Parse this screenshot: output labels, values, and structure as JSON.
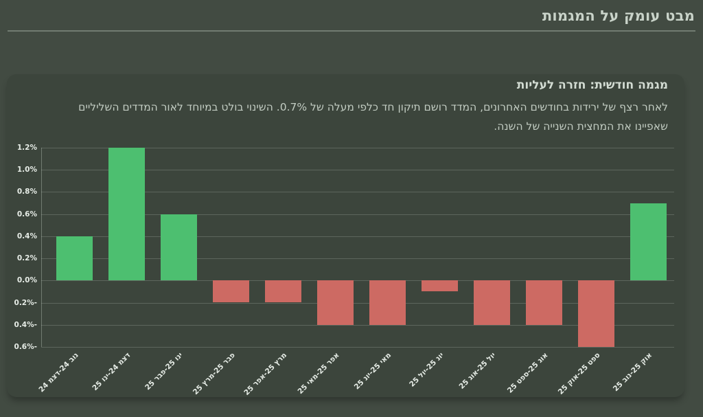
{
  "header": {
    "title": "מבט עומק על המגמות"
  },
  "card": {
    "subtitle": "מגמה חודשית: חזרה לעליות",
    "description_lines": [
      "לאחר רצף של ירידות בחודשים האחרונים, המדד רושם תיקון חד כלפי מעלה של 0.7%. השינוי בולט במיוחד לאור המדדים השליליים",
      "שאפיינו את המחצית השנייה של השנה."
    ]
  },
  "chart_data": {
    "type": "bar",
    "title": "",
    "xlabel": "",
    "ylabel": "",
    "categories": [
      "נוב 24-דצמ 24",
      "דצמ 24-ינו 25",
      "ינו 25-פבר 25",
      "פבר 25-מרץ 25",
      "מרץ 25-אפר 25",
      "אפר 25-מאי 25",
      "מאי 25-יונ 25",
      "יונ 25-יול 25",
      "יול 25-אוג 25",
      "אוג 25-ספט 25",
      "ספט 25-אוק 25",
      "אוק 25-נוב 25"
    ],
    "values": [
      0.4,
      1.2,
      0.6,
      -0.2,
      -0.2,
      -0.4,
      -0.4,
      -0.1,
      -0.4,
      -0.4,
      -0.6,
      0.7
    ],
    "value_unit": "%",
    "ylim": [
      -0.6,
      1.2
    ],
    "yticks": [
      1.2,
      1.0,
      0.8,
      0.6,
      0.4,
      0.2,
      0.0,
      -0.2,
      -0.4,
      -0.6
    ],
    "ytick_labels": [
      "1.2%",
      "1.0%",
      "0.8%",
      "0.6%",
      "0.4%",
      "0.2%",
      "0.0%",
      "-0.2%",
      "-0.4%",
      "-0.6%"
    ],
    "grid": true,
    "legend": false,
    "colors": {
      "positive": "#4dbf70",
      "negative": "#cd6a63"
    }
  }
}
